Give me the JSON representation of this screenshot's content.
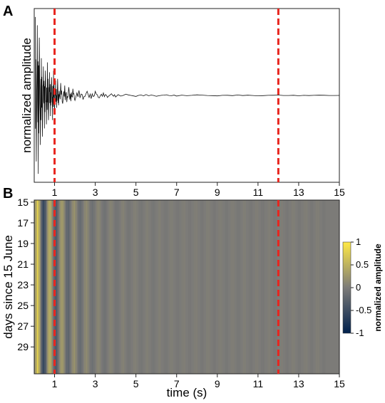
{
  "chart_data": [
    {
      "panel": "A",
      "type": "line",
      "ylabel": "normalized amplitude",
      "xlabel": "",
      "xlim": [
        0,
        15
      ],
      "x_ticks": [
        1,
        3,
        5,
        7,
        9,
        11,
        13,
        15
      ],
      "series": [
        {
          "x": [
            0.05,
            0.1,
            0.15,
            0.2,
            0.25,
            0.3,
            0.35,
            0.4,
            0.45,
            0.5,
            0.55,
            0.6,
            0.65,
            0.7,
            0.75,
            0.8,
            0.85,
            0.9,
            0.95,
            1.0,
            1.05,
            1.1,
            1.15,
            1.2,
            1.3,
            1.4,
            1.5,
            1.6,
            1.7,
            1.8,
            1.9,
            2.0,
            2.2,
            2.4,
            2.6,
            2.8,
            3.0,
            3.2,
            3.4,
            3.6,
            3.8,
            4.0,
            4.5,
            5.0,
            5.5,
            6.0,
            6.5,
            7.0,
            8.0,
            9.0,
            10.0,
            11.0,
            12.0,
            13.0,
            14.0,
            15.0
          ],
          "y": [
            0.95,
            -0.8,
            0.85,
            -0.95,
            0.7,
            -0.6,
            0.45,
            -0.5,
            0.35,
            -0.4,
            0.3,
            -0.35,
            0.4,
            -0.3,
            0.28,
            -0.25,
            0.22,
            -0.3,
            0.3,
            -0.2,
            0.18,
            -0.15,
            0.2,
            -0.12,
            0.15,
            -0.1,
            0.12,
            -0.08,
            0.1,
            -0.07,
            0.08,
            -0.06,
            0.06,
            -0.05,
            0.05,
            -0.04,
            0.05,
            -0.03,
            0.03,
            -0.025,
            0.02,
            -0.02,
            0.015,
            -0.012,
            0.01,
            -0.01,
            0.008,
            -0.008,
            0.007,
            -0.006,
            0.005,
            -0.005,
            0.004,
            -0.004,
            0.003,
            0.0
          ]
        }
      ],
      "markers": [
        1,
        12
      ],
      "marker_color": "#e8261f"
    },
    {
      "panel": "B",
      "type": "heatmap",
      "ylabel": "days since 15 June",
      "xlabel": "time (s)",
      "xlim": [
        0,
        15
      ],
      "x_ticks": [
        1,
        3,
        5,
        7,
        9,
        11,
        13,
        15
      ],
      "y_ticks": [
        15,
        17,
        19,
        21,
        23,
        25,
        27,
        29
      ],
      "colorbar": {
        "title": "normalized amplitude",
        "ticks": [
          1,
          0.5,
          0,
          -0.5,
          -1
        ],
        "colors": [
          "#00204c",
          "#7c7b78",
          "#ffe945"
        ]
      },
      "markers": [
        1,
        12
      ],
      "marker_color": "#e8261f"
    }
  ],
  "panel_labels": {
    "a": "A",
    "b": "B"
  },
  "axis_text": {
    "a_ylabel": "normalized amplitude",
    "b_ylabel": "days since 15 June",
    "b_xlabel": "time (s)",
    "cbar_title": "normalized amplitude"
  },
  "x_tick_labels": [
    "1",
    "3",
    "5",
    "7",
    "9",
    "11",
    "13",
    "15"
  ],
  "y_tick_labels": [
    "15",
    "17",
    "19",
    "21",
    "23",
    "25",
    "27",
    "29"
  ],
  "cbar_tick_labels": [
    "1",
    "0.5",
    "0",
    "-0.5",
    "-1"
  ]
}
